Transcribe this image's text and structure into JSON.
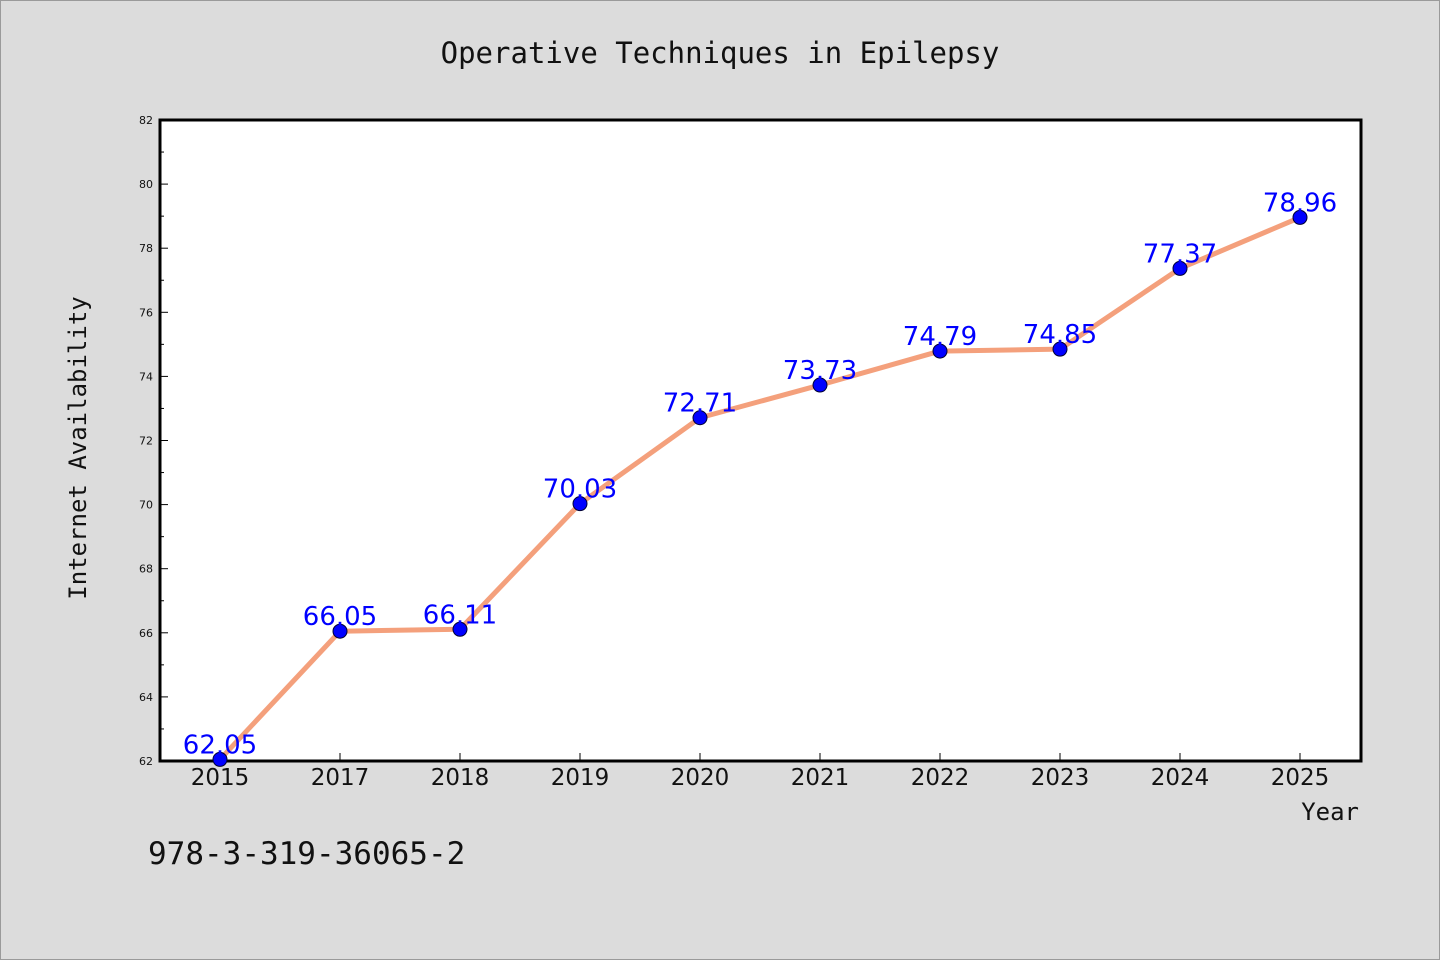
{
  "chart_data": {
    "type": "line",
    "title": "Operative Techniques in Epilepsy",
    "xlabel": "Year",
    "ylabel": "Internet Availability",
    "categories": [
      "2015",
      "2017",
      "2018",
      "2019",
      "2020",
      "2021",
      "2022",
      "2023",
      "2024",
      "2025"
    ],
    "series": [
      {
        "values": [
          62.05,
          66.05,
          66.11,
          70.03,
          72.71,
          73.73,
          74.79,
          74.85,
          77.37,
          78.96
        ],
        "labels": [
          "62.05",
          "66.05",
          "66.11",
          "70.03",
          "72.71",
          "73.73",
          "74.79",
          "74.85",
          "77.37",
          "78.96"
        ],
        "line_color": "#f4a07c",
        "marker_color": "#0000ff"
      }
    ],
    "ylim": [
      62,
      82
    ],
    "yticks": [
      "62",
      "64",
      "66",
      "68",
      "70",
      "72",
      "74",
      "76",
      "78",
      "80",
      "82"
    ],
    "grid": false,
    "legend": "none"
  },
  "footer": {
    "isbn": "978-3-319-36065-2"
  },
  "colors": {
    "background": "#dcdcdc",
    "plot_background": "#ffffff",
    "line": "#f4a07c",
    "marker": "#0000ff",
    "label": "#0000ff"
  }
}
